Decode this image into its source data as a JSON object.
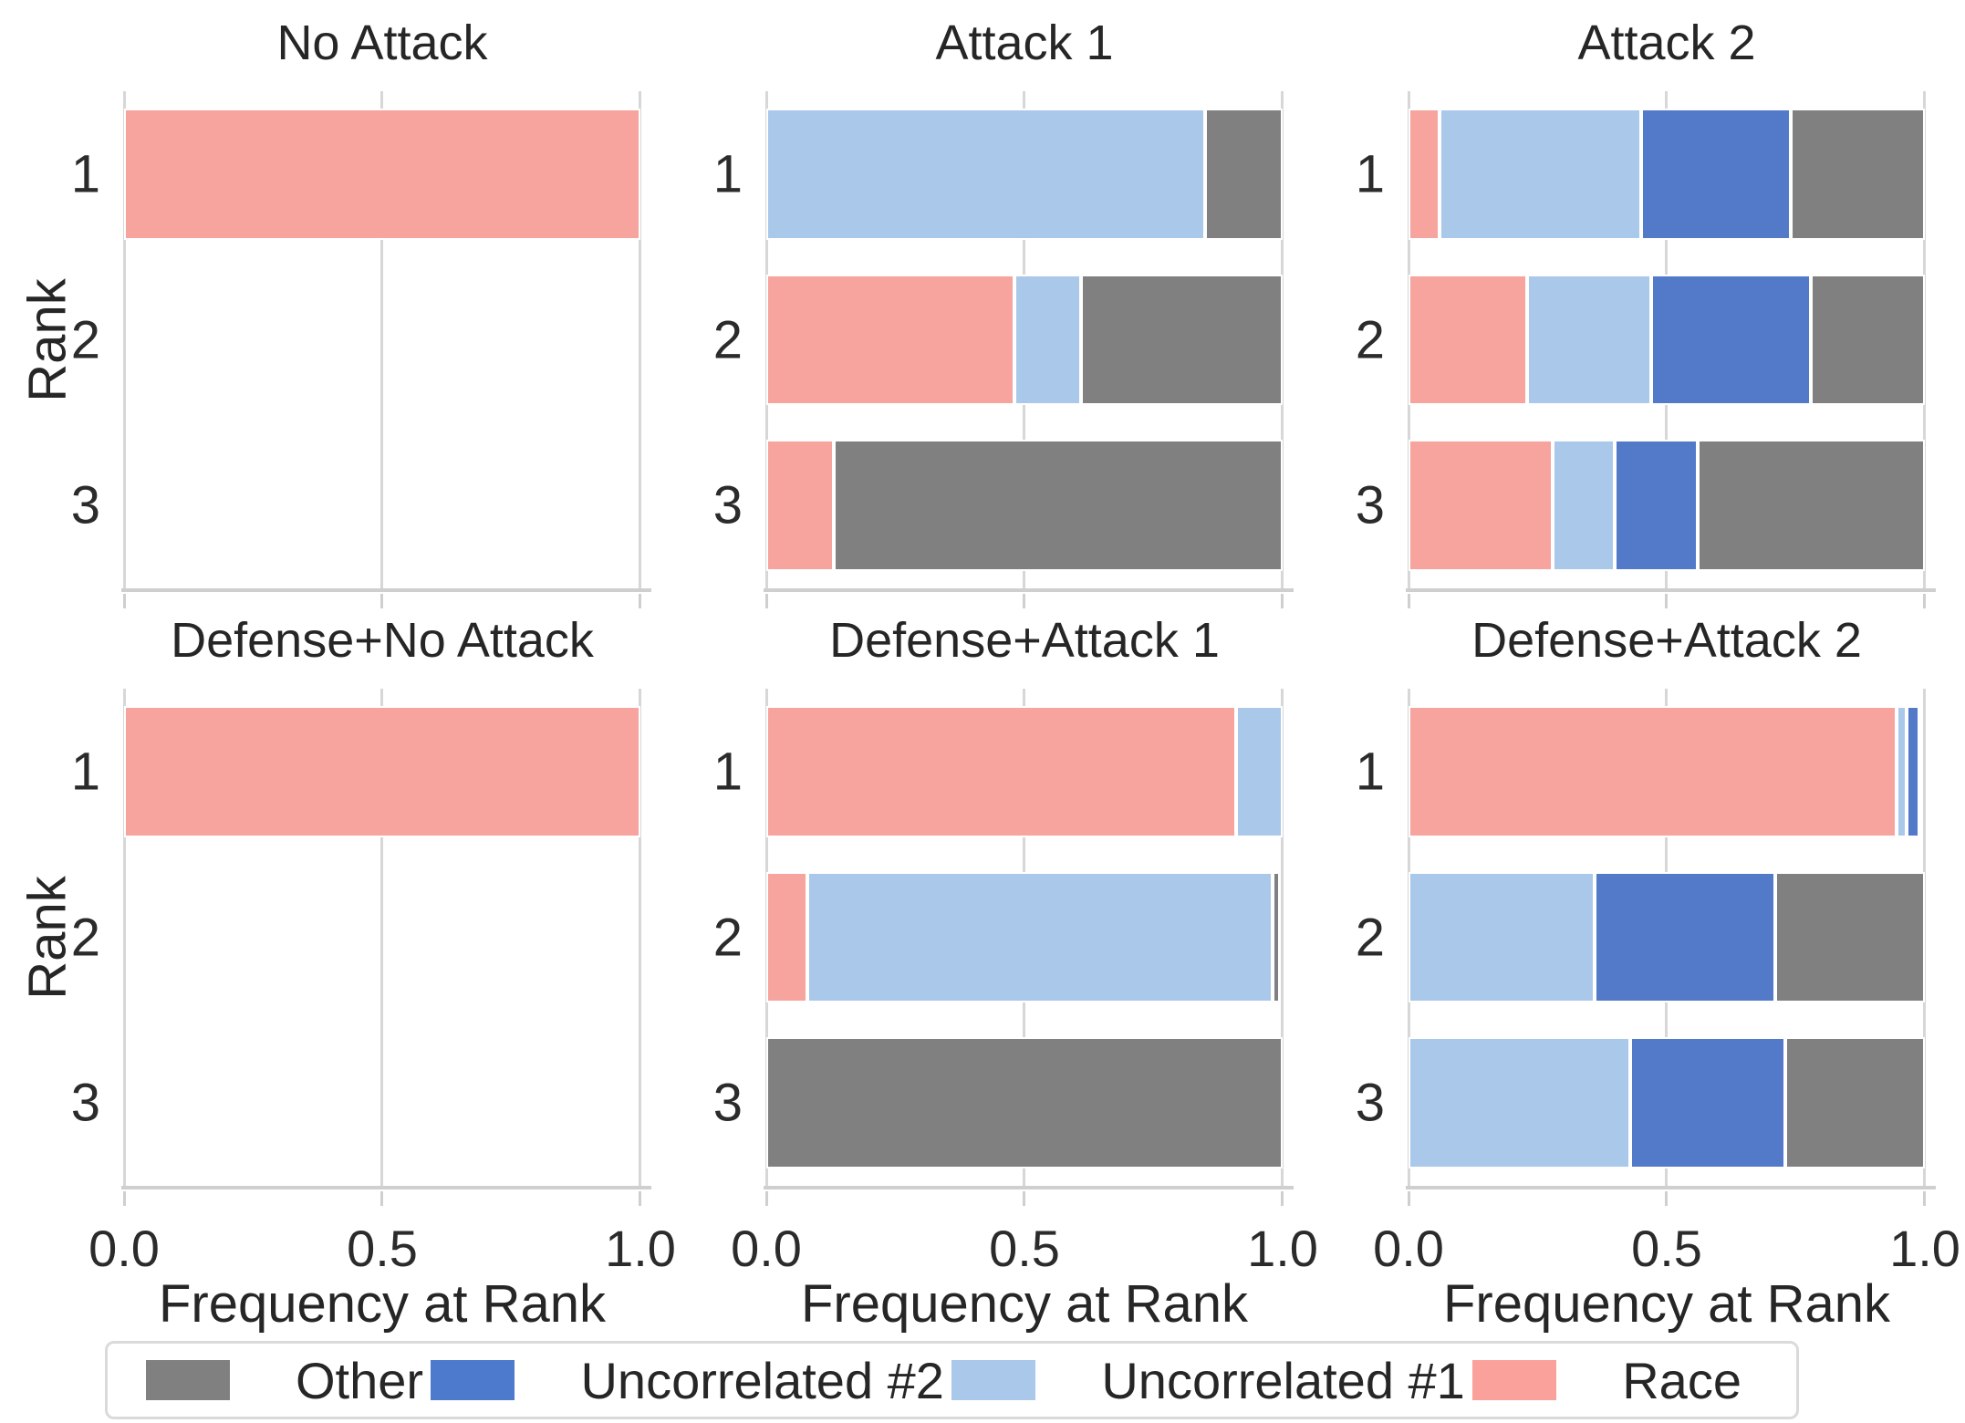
{
  "chart_data": {
    "type": "bar",
    "orientation": "horizontal-stacked",
    "grid": true,
    "xlabel": "Frequency at Rank",
    "ylabel": "Rank",
    "xlim": [
      0.0,
      1.0
    ],
    "xticks": [
      "0.0",
      "0.5",
      "1.0"
    ],
    "categories": [
      "1",
      "2",
      "3"
    ],
    "series_order": [
      "Race",
      "Uncorrelated #1",
      "Uncorrelated #2",
      "Other"
    ],
    "series_colors": {
      "Race": "#f7a39e",
      "Uncorrelated #1": "#a9c8ea",
      "Uncorrelated #2": "#527ac9",
      "Other": "#808080"
    },
    "subplots": [
      {
        "title": "No Attack",
        "rows": [
          [
            1.0,
            0,
            0,
            0
          ],
          [
            0,
            0,
            0,
            0
          ],
          [
            0,
            0,
            0,
            0
          ]
        ]
      },
      {
        "title": "Attack 1",
        "rows": [
          [
            0,
            0.85,
            0,
            0.15
          ],
          [
            0.48,
            0.13,
            0,
            0.39
          ],
          [
            0.13,
            0,
            0,
            0.87
          ]
        ]
      },
      {
        "title": "Attack 2",
        "rows": [
          [
            0.06,
            0.39,
            0.29,
            0.26
          ],
          [
            0.23,
            0.24,
            0.31,
            0.22
          ],
          [
            0.28,
            0.12,
            0.16,
            0.44
          ]
        ]
      },
      {
        "title": "Defense+No Attack",
        "rows": [
          [
            1.0,
            0,
            0,
            0
          ],
          [
            0,
            0,
            0,
            0
          ],
          [
            0,
            0,
            0,
            0
          ]
        ]
      },
      {
        "title": "Defense+Attack 1",
        "rows": [
          [
            0.91,
            0.09,
            0,
            0
          ],
          [
            0.08,
            0.9,
            0,
            0.015
          ],
          [
            0,
            0,
            0,
            1.0
          ]
        ]
      },
      {
        "title": "Defense+Attack 2",
        "rows": [
          [
            0.945,
            0.02,
            0.025,
            0
          ],
          [
            0,
            0.36,
            0.35,
            0.29
          ],
          [
            0,
            0.43,
            0.3,
            0.27
          ]
        ]
      }
    ],
    "legend": {
      "position": "bottom",
      "entries": [
        {
          "label": "Other",
          "color": "#808080"
        },
        {
          "label": "Uncorrelated #2",
          "color": "#4d7acc"
        },
        {
          "label": "Uncorrelated #1",
          "color": "#a9c8ea"
        },
        {
          "label": "Race",
          "color": "#fba19c"
        }
      ]
    },
    "style": {
      "gridline_color": "#d7d7d7",
      "spine_color": "#cfcfcf",
      "text_color": "#262626",
      "bar_edge_color": "#ffffff"
    }
  }
}
